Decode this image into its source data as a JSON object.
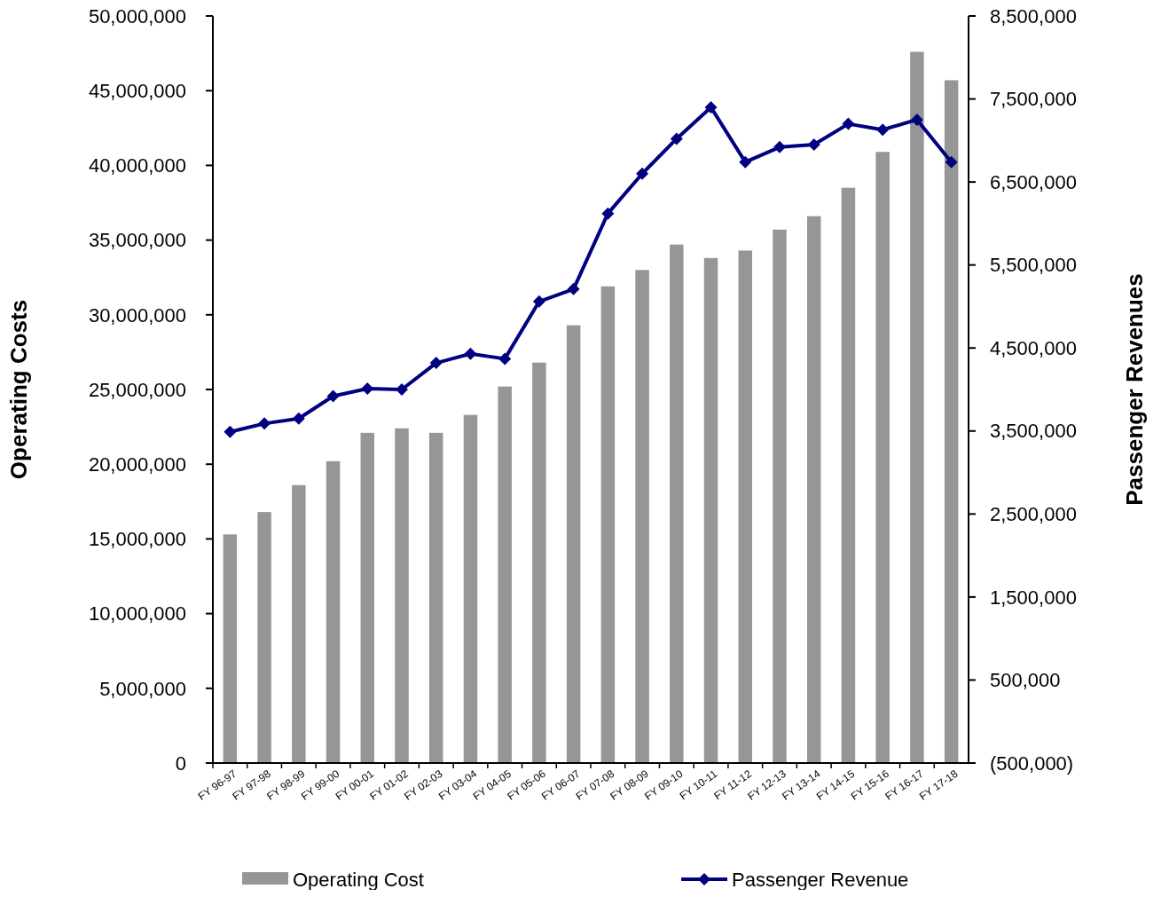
{
  "chart_data": {
    "type": "bar",
    "ylabel": "Operating Costs",
    "y2label": "Passenger Revenues",
    "categories": [
      "FY 96-97",
      "FY 97-98",
      "FY 98-99",
      "FY 99-00",
      "FY 00-01",
      "FY 01-02",
      "FY 02-03",
      "FY 03-04",
      "FY 04-05",
      "FY 05-06",
      "FY 06-07",
      "FY 07-08",
      "FY 08-09",
      "FY 09-10",
      "FY 10-11",
      "FY 11-12",
      "FY 12-13",
      "FY 13-14",
      "FY 14-15",
      "FY 15-16",
      "FY 16-17",
      "FY 17-18"
    ],
    "series": [
      {
        "name": "Operating Cost",
        "color": "#969696",
        "values": [
          15300000,
          16800000,
          18600000,
          20200000,
          22100000,
          22400000,
          22100000,
          23300000,
          25200000,
          26800000,
          29300000,
          31900000,
          33000000,
          34700000,
          33800000,
          34300000,
          35700000,
          36600000,
          38500000,
          40900000,
          47600000,
          45700000
        ]
      },
      {
        "name": "Passenger Revenue",
        "type": "line",
        "axis": "y2",
        "color": "#000080",
        "marker": "diamond",
        "values": [
          3490000,
          3590000,
          3650000,
          3920000,
          4010000,
          4000000,
          4320000,
          4430000,
          4370000,
          5060000,
          5210000,
          6120000,
          6600000,
          7020000,
          7400000,
          6740000,
          6920000,
          6950000,
          7200000,
          7130000,
          7250000,
          6740000
        ]
      }
    ],
    "ylim": [
      0,
      50000000
    ],
    "yticks": [
      {
        "value": 0,
        "label": "0"
      },
      {
        "value": 5000000,
        "label": "5,000,000"
      },
      {
        "value": 10000000,
        "label": "10,000,000"
      },
      {
        "value": 15000000,
        "label": "15,000,000"
      },
      {
        "value": 20000000,
        "label": "20,000,000"
      },
      {
        "value": 25000000,
        "label": "25,000,000"
      },
      {
        "value": 30000000,
        "label": "30,000,000"
      },
      {
        "value": 35000000,
        "label": "35,000,000"
      },
      {
        "value": 40000000,
        "label": "40,000,000"
      },
      {
        "value": 45000000,
        "label": "45,000,000"
      },
      {
        "value": 50000000,
        "label": "50,000,000"
      }
    ],
    "y2lim": [
      -500000,
      8500000
    ],
    "y2ticks": [
      {
        "value": -500000,
        "label": "(500,000)"
      },
      {
        "value": 500000,
        "label": "500,000"
      },
      {
        "value": 1500000,
        "label": "1,500,000"
      },
      {
        "value": 2500000,
        "label": "2,500,000"
      },
      {
        "value": 3500000,
        "label": "3,500,000"
      },
      {
        "value": 4500000,
        "label": "4,500,000"
      },
      {
        "value": 5500000,
        "label": "5,500,000"
      },
      {
        "value": 6500000,
        "label": "6,500,000"
      },
      {
        "value": 7500000,
        "label": "7,500,000"
      },
      {
        "value": 8500000,
        "label": "8,500,000"
      }
    ],
    "legend": "bottom",
    "grid": false
  }
}
